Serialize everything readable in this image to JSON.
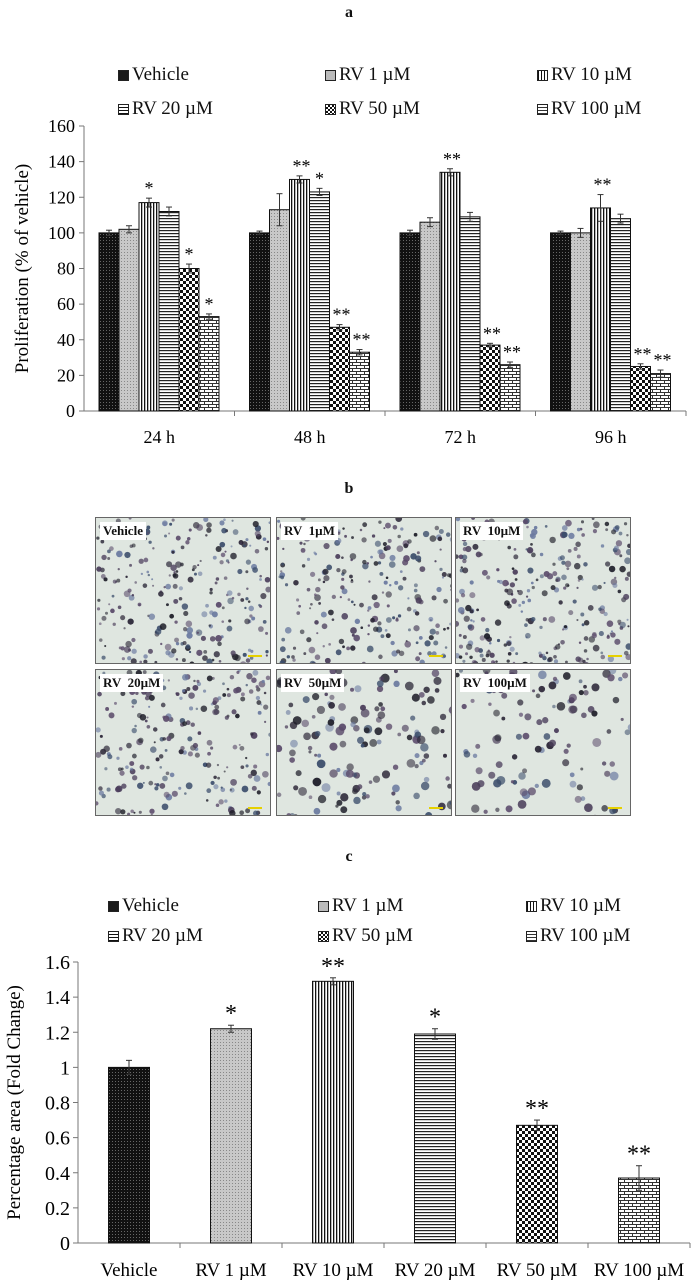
{
  "panels": {
    "a_label": "a",
    "b_label": "b",
    "c_label": "c"
  },
  "legend": [
    {
      "name": "Vehicle",
      "pattern": "dark-dots"
    },
    {
      "name": "RV 1 µM",
      "pattern": "light-dots"
    },
    {
      "name": "RV 10 µM",
      "pattern": "vertical-lines"
    },
    {
      "name": "RV 20 µM",
      "pattern": "horizontal-lines"
    },
    {
      "name": "RV 50 µM",
      "pattern": "checker"
    },
    {
      "name": "RV 100 µM",
      "pattern": "brick"
    }
  ],
  "microscopy": {
    "images": [
      {
        "label": "Vehicle"
      },
      {
        "label": "RV  1µM"
      },
      {
        "label": "RV  10µM"
      },
      {
        "label": "RV  20µM"
      },
      {
        "label": "RV  50µM"
      },
      {
        "label": "RV  100µM"
      }
    ]
  },
  "chart_data": [
    {
      "id": "a",
      "type": "bar",
      "title": "a",
      "xlabel": "",
      "ylabel": "Proliferation (% of vehicle)",
      "ylim": [
        0,
        160
      ],
      "yticks": [
        0,
        20,
        40,
        60,
        80,
        100,
        120,
        140,
        160
      ],
      "grid": false,
      "legend_position": "top",
      "categories": [
        "24 h",
        "48 h",
        "72 h",
        "96 h"
      ],
      "series": [
        {
          "name": "Vehicle",
          "values": [
            100,
            100,
            100,
            100
          ],
          "errors": [
            1.5,
            1,
            1.5,
            1
          ],
          "sig": [
            "",
            "",
            "",
            ""
          ]
        },
        {
          "name": "RV 1 µM",
          "values": [
            102,
            113,
            106,
            100
          ],
          "errors": [
            2,
            9,
            2.5,
            2.5
          ],
          "sig": [
            "",
            "",
            "",
            ""
          ]
        },
        {
          "name": "RV 10 µM",
          "values": [
            117,
            130,
            134,
            114
          ],
          "errors": [
            2.5,
            2,
            2,
            7.5
          ],
          "sig": [
            "*",
            "**",
            "**",
            "**"
          ]
        },
        {
          "name": "RV 20 µM",
          "values": [
            112,
            123,
            109,
            108
          ],
          "errors": [
            2.5,
            2,
            2.5,
            2.5
          ],
          "sig": [
            "",
            "*",
            "",
            ""
          ]
        },
        {
          "name": "RV 50 µM",
          "values": [
            80,
            47,
            37,
            25
          ],
          "errors": [
            2.5,
            1.5,
            1,
            1.5
          ],
          "sig": [
            "*",
            "**",
            "**",
            "**"
          ]
        },
        {
          "name": "RV 100 µM",
          "values": [
            53,
            33,
            26,
            21
          ],
          "errors": [
            1.5,
            1.5,
            1.5,
            2
          ],
          "sig": [
            "*",
            "**",
            "**",
            "**"
          ]
        }
      ]
    },
    {
      "id": "c",
      "type": "bar",
      "title": "c",
      "xlabel": "",
      "ylabel": "Percentage area (Fold Change)",
      "ylim": [
        0,
        1.6
      ],
      "yticks": [
        "0",
        "0.2",
        "0.4",
        "0.6",
        "0.8",
        "1",
        "1.2",
        "1.4",
        "1.6"
      ],
      "grid": false,
      "legend_position": "top",
      "categories": [
        "Vehicle",
        "RV 1 µM",
        "RV 10 µM",
        "RV 20 µM",
        "RV 50 µM",
        "RV 100 µM"
      ],
      "values": [
        1.0,
        1.22,
        1.49,
        1.19,
        0.67,
        0.37
      ],
      "errors": [
        0.04,
        0.02,
        0.02,
        0.03,
        0.03,
        0.07
      ],
      "sig": [
        "",
        "*",
        "**",
        "*",
        "**",
        "**"
      ]
    }
  ]
}
